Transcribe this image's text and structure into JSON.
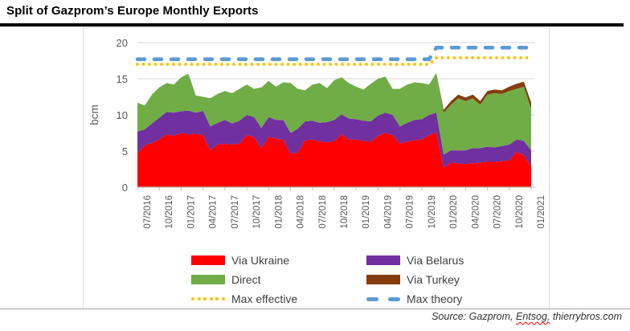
{
  "page": {
    "title": "Split of Gazprom’s Europe Monthly Exports",
    "source": {
      "prefix": "Source: Gazprom, ",
      "flagged_word": "Entsog,",
      "suffix": " thierrybros.com"
    }
  },
  "chart_data": {
    "type": "area",
    "stacked": true,
    "ylabel": "bcm",
    "ylim": [
      0,
      20
    ],
    "yticks": [
      0,
      5,
      10,
      15,
      20
    ],
    "grid": "horizontal",
    "legend_position": "bottom",
    "x_interval": "monthly",
    "x_start": "07/2016",
    "x_end": "01/2021",
    "x_tick_every": 3,
    "x_tick_labels": [
      "07/2016",
      "10/2016",
      "01/2017",
      "04/2017",
      "07/2017",
      "10/2017",
      "01/2018",
      "04/2018",
      "07/2018",
      "10/2018",
      "01/2019",
      "04/2019",
      "07/2019",
      "10/2019",
      "01/2020",
      "04/2020",
      "07/2020",
      "10/2020",
      "01/2021"
    ],
    "series": [
      {
        "name": "Via Ukraine",
        "color": "#FF0000",
        "values": [
          4.7,
          5.8,
          6.1,
          6.6,
          7.3,
          7.1,
          7.5,
          7.3,
          7.4,
          7.2,
          5.1,
          5.9,
          6.0,
          5.9,
          6.0,
          7.25,
          6.9,
          5.4,
          7.0,
          6.7,
          6.6,
          4.6,
          4.8,
          6.5,
          6.6,
          6.3,
          6.2,
          6.4,
          7.3,
          6.6,
          6.6,
          6.4,
          6.3,
          7.1,
          7.5,
          7.2,
          6.0,
          6.3,
          6.5,
          6.6,
          7.2,
          7.6,
          2.7,
          3.4,
          3.3,
          3.2,
          3.3,
          3.4,
          3.5,
          3.5,
          3.6,
          3.7,
          4.9,
          4.4,
          2.9
        ]
      },
      {
        "name": "Via Belarus",
        "color": "#7030A0",
        "values": [
          3.0,
          2.2,
          2.7,
          3.0,
          3.1,
          3.2,
          3.0,
          3.3,
          2.9,
          3.35,
          3.3,
          3.0,
          3.3,
          2.9,
          3.2,
          2.75,
          2.8,
          2.8,
          2.7,
          2.6,
          2.7,
          2.9,
          3.3,
          2.6,
          2.6,
          2.6,
          2.8,
          2.9,
          2.8,
          2.9,
          2.8,
          2.8,
          2.8,
          2.8,
          2.8,
          2.8,
          2.4,
          2.6,
          2.8,
          2.8,
          2.8,
          2.7,
          1.8,
          1.7,
          1.8,
          1.9,
          2.1,
          2.0,
          2.1,
          2.0,
          2.1,
          2.2,
          1.7,
          2.0,
          2.2
        ]
      },
      {
        "name": "Direct",
        "color": "#70AD47",
        "values": [
          4.0,
          3.3,
          4.0,
          4.2,
          4.0,
          3.9,
          4.7,
          5.1,
          2.4,
          1.95,
          3.9,
          4.0,
          4.0,
          4.2,
          4.4,
          4.2,
          3.9,
          5.6,
          5.0,
          4.6,
          5.2,
          6.9,
          5.5,
          4.3,
          5.0,
          5.5,
          4.7,
          5.5,
          5.1,
          4.9,
          4.5,
          4.3,
          5.2,
          5.1,
          5.0,
          3.6,
          5.2,
          5.3,
          5.2,
          5.0,
          4.2,
          5.5,
          5.8,
          6.3,
          7.2,
          6.8,
          6.9,
          6.0,
          7.2,
          7.5,
          7.2,
          7.4,
          7.0,
          7.5,
          5.7
        ]
      },
      {
        "name": "Via Turkey",
        "color": "#843C0C",
        "values": [
          0,
          0,
          0,
          0,
          0,
          0,
          0,
          0,
          0,
          0,
          0,
          0,
          0,
          0,
          0,
          0,
          0,
          0,
          0,
          0,
          0,
          0,
          0,
          0,
          0,
          0,
          0,
          0,
          0,
          0,
          0,
          0,
          0,
          0,
          0,
          0,
          0,
          0,
          0,
          0,
          0,
          0,
          0.4,
          0.5,
          0.5,
          0.5,
          0.5,
          0.5,
          0.5,
          0.5,
          0.5,
          0.6,
          0.7,
          0.7,
          0.9
        ]
      }
    ],
    "lines": [
      {
        "name": "Max effective",
        "color": "#FFC000",
        "style": "dotted",
        "value_before": 17.0,
        "value_after": 17.9,
        "step_after_index": 40
      },
      {
        "name": "Max theory",
        "color": "#5B9BD5",
        "style": "dashed",
        "value_before": 17.7,
        "value_after": 19.3,
        "step_after_index": 40
      }
    ]
  }
}
